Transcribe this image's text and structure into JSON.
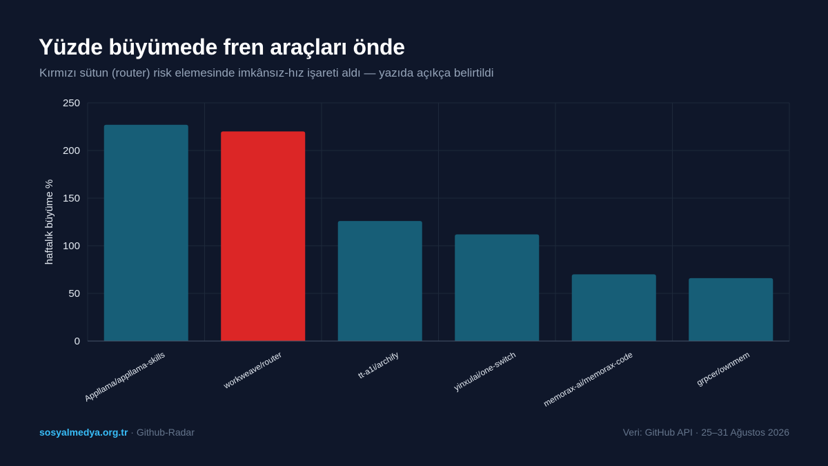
{
  "header": {
    "title": "Yüzde büyümede fren araçları önde",
    "subtitle": "Kırmızı sütun (router) risk elemesinde imkânsız-hız işareti aldı — yazıda açıkça belirtildi"
  },
  "footer": {
    "brand": "sosyalmedya.org.tr",
    "separator": " · ",
    "site_name": "Github-Radar",
    "source": "Veri: GitHub API · 25–31 Ağustos 2026"
  },
  "colors": {
    "background": "#0f172a",
    "bar_default": "#175e77",
    "bar_highlight": "#dc2626",
    "grid": "#1e293b",
    "axis_text": "#e2e8f0",
    "brand": "#38bdf8"
  },
  "chart_data": {
    "type": "bar",
    "title": "Yüzde büyümede fren araçları önde",
    "ylabel": "haftalık büyüme %",
    "xlabel": "",
    "ylim": [
      0,
      250
    ],
    "yticks": [
      0,
      50,
      100,
      150,
      200,
      250
    ],
    "grid": true,
    "categories": [
      "Appllama/appllama-skills",
      "workweave/router",
      "tt-a1i/archify",
      "yinxulai/one-switch",
      "memorax-ai/memorax-code",
      "grpcer/ownmem"
    ],
    "values": [
      227,
      220,
      126,
      112,
      70,
      66
    ],
    "highlight": [
      "workweave/router"
    ]
  }
}
